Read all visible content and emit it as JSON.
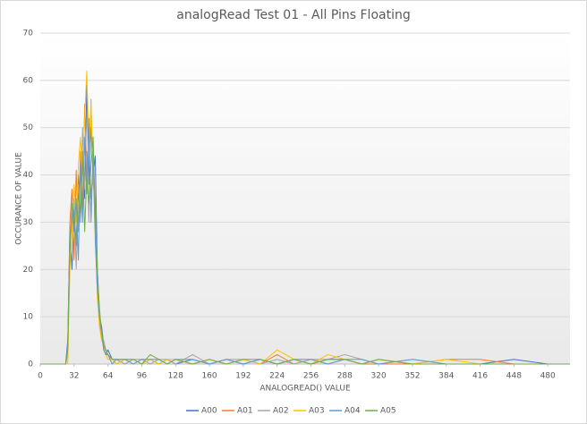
{
  "chart_data": {
    "type": "line",
    "title": "analogRead Test 01 - All Pins Floating",
    "x_label": "ANALOGREAD() VALUE",
    "y_label": "OCCURANCE OF VALUE",
    "x": [
      0,
      20,
      24,
      26,
      28,
      30,
      32,
      34,
      36,
      38,
      40,
      42,
      44,
      46,
      48,
      50,
      52,
      54,
      56,
      58,
      60,
      62,
      64,
      68,
      72,
      80,
      88,
      96,
      104,
      112,
      120,
      128,
      144,
      160,
      176,
      192,
      208,
      224,
      240,
      256,
      272,
      288,
      304,
      320,
      352,
      384,
      416,
      448,
      480,
      501
    ],
    "series": [
      {
        "name": "A00",
        "color": "#4472c4",
        "values": [
          0,
          0,
          0,
          5,
          28,
          20,
          33,
          25,
          40,
          30,
          45,
          35,
          59,
          38,
          50,
          40,
          44,
          20,
          10,
          8,
          4,
          2,
          3,
          1,
          1,
          0,
          1,
          0,
          1,
          0,
          1,
          0,
          1,
          0,
          1,
          0,
          1,
          0,
          1,
          0,
          1,
          1,
          0,
          1,
          0,
          0,
          0,
          1,
          0,
          0
        ]
      },
      {
        "name": "A01",
        "color": "#ed7d31",
        "values": [
          0,
          0,
          0,
          3,
          30,
          37,
          22,
          41,
          28,
          45,
          33,
          55,
          40,
          48,
          35,
          42,
          28,
          15,
          9,
          6,
          3,
          2,
          2,
          1,
          0,
          1,
          0,
          1,
          0,
          1,
          0,
          1,
          0,
          1,
          0,
          1,
          0,
          2,
          0,
          1,
          0,
          1,
          0,
          0,
          0,
          1,
          1,
          0,
          0,
          0
        ]
      },
      {
        "name": "A02",
        "color": "#a5a5a5",
        "values": [
          0,
          0,
          0,
          2,
          25,
          30,
          35,
          20,
          38,
          30,
          50,
          37,
          45,
          30,
          56,
          38,
          35,
          18,
          12,
          6,
          5,
          3,
          2,
          1,
          1,
          0,
          1,
          1,
          0,
          1,
          1,
          0,
          2,
          0,
          1,
          1,
          0,
          1,
          0,
          1,
          1,
          2,
          1,
          0,
          1,
          0,
          0,
          0,
          0,
          0
        ]
      },
      {
        "name": "A03",
        "color": "#ffc000",
        "values": [
          0,
          0,
          0,
          0,
          20,
          28,
          38,
          30,
          42,
          48,
          40,
          52,
          62,
          45,
          55,
          40,
          30,
          14,
          8,
          5,
          4,
          2,
          1,
          1,
          0,
          1,
          1,
          0,
          1,
          0,
          1,
          1,
          0,
          1,
          0,
          1,
          0,
          3,
          1,
          0,
          2,
          1,
          0,
          1,
          0,
          1,
          0,
          0,
          0,
          0
        ]
      },
      {
        "name": "A04",
        "color": "#5b9bd5",
        "values": [
          0,
          0,
          0,
          4,
          26,
          32,
          28,
          35,
          22,
          42,
          30,
          48,
          36,
          52,
          30,
          45,
          26,
          16,
          10,
          7,
          3,
          2,
          2,
          0,
          1,
          1,
          0,
          1,
          1,
          1,
          0,
          1,
          1,
          0,
          1,
          0,
          1,
          0,
          1,
          1,
          0,
          1,
          1,
          0,
          1,
          0,
          0,
          0,
          0,
          0
        ]
      },
      {
        "name": "A05",
        "color": "#70ad47",
        "values": [
          0,
          0,
          0,
          3,
          24,
          34,
          30,
          26,
          36,
          32,
          44,
          28,
          40,
          34,
          42,
          48,
          32,
          20,
          11,
          7,
          4,
          3,
          2,
          1,
          1,
          1,
          1,
          0,
          2,
          1,
          0,
          1,
          0,
          1,
          0,
          1,
          1,
          0,
          1,
          0,
          1,
          1,
          0,
          1,
          0,
          0,
          0,
          0,
          0,
          0
        ]
      }
    ],
    "xlim": [
      0,
      501
    ],
    "ylim": [
      0,
      70
    ],
    "xticks": [
      0,
      32,
      64,
      96,
      128,
      160,
      192,
      224,
      256,
      288,
      320,
      352,
      384,
      416,
      448,
      480
    ],
    "yticks": [
      0,
      10,
      20,
      30,
      40,
      50,
      60,
      70
    ],
    "grid": true,
    "legend": "bottom"
  }
}
